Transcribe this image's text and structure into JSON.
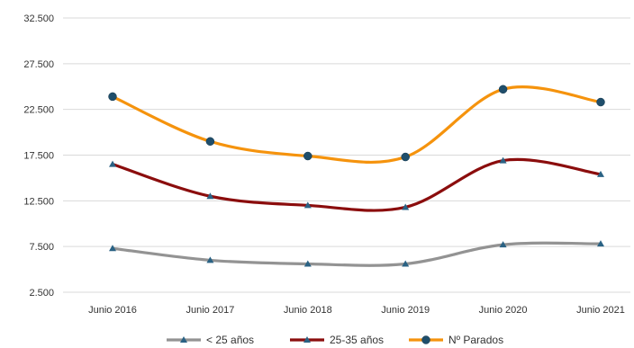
{
  "chart_data": {
    "type": "line",
    "categories": [
      "Junio 2016",
      "Junio 2017",
      "Junio 2018",
      "Junio 2019",
      "Junio 2020",
      "Junio 2021"
    ],
    "y_ticks": [
      "2.500",
      "7.500",
      "12.500",
      "17.500",
      "22.500",
      "27.500",
      "32.500"
    ],
    "ylim": [
      2500,
      32500
    ],
    "grid": true,
    "legend_position": "bottom",
    "smooth": true,
    "series": [
      {
        "name": "< 25 años",
        "color": "#939393",
        "marker": "triangle",
        "values": [
          7300,
          6000,
          5600,
          5600,
          7700,
          7800
        ]
      },
      {
        "name": "25-35 años",
        "color": "#8b0d0d",
        "marker": "triangle",
        "values": [
          16500,
          13000,
          12000,
          11800,
          16900,
          15400
        ]
      },
      {
        "name": "Nº Parados",
        "color": "#f5930d",
        "marker": "circle",
        "markerColor": "#1f4e6b",
        "values": [
          23900,
          19000,
          17400,
          17300,
          24700,
          23300
        ]
      }
    ]
  }
}
